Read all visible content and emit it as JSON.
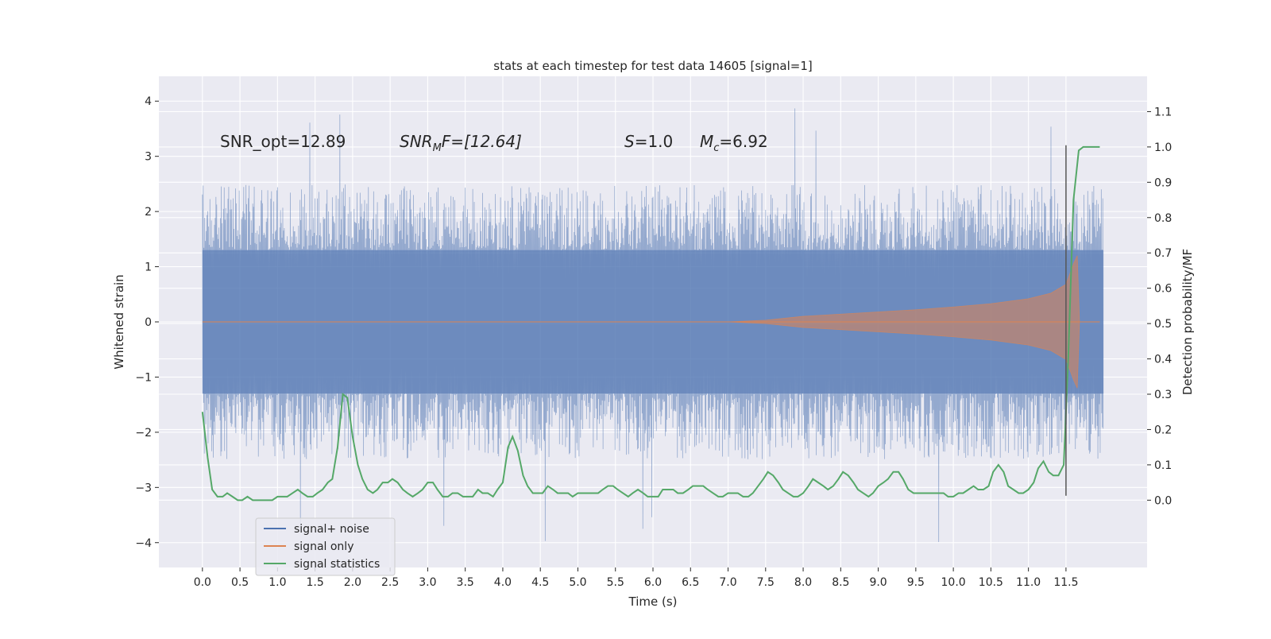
{
  "chart_data": {
    "type": "line",
    "title": "stats at each timestep for test data 14605 [signal=1]",
    "xlabel": "Time (s)",
    "ylabel": "Whitened strain",
    "y2label": "Detection probability/MF",
    "xlim": [
      -0.58,
      12.58
    ],
    "ylim": [
      -4.45,
      4.45
    ],
    "y2lim": [
      -0.1905,
      1.2
    ],
    "xticks": [
      "0.0",
      "0.5",
      "1.0",
      "1.5",
      "2.0",
      "2.5",
      "3.0",
      "3.5",
      "4.0",
      "4.5",
      "5.0",
      "5.5",
      "6.0",
      "6.5",
      "7.0",
      "7.5",
      "8.0",
      "8.5",
      "9.0",
      "9.5",
      "10.0",
      "10.5",
      "11.0",
      "11.5"
    ],
    "yticks": [
      "4",
      "3",
      "2",
      "1",
      "0",
      "−1",
      "−2",
      "−3",
      "−4"
    ],
    "y2ticks": [
      "1.1",
      "1.0",
      "0.9",
      "0.8",
      "0.7",
      "0.6",
      "0.5",
      "0.4",
      "0.3",
      "0.2",
      "0.1",
      "0.0"
    ],
    "grid": true,
    "legend_position": "lower-left",
    "annotations": {
      "snr_opt": "SNR_opt=12.89",
      "snr_mf_sym": "SNR",
      "snr_mf_sub": "M",
      "snr_mf_rest": "F=[12.64]",
      "s_sym": "S",
      "s_rest": "=1.0",
      "mc_sym": "M",
      "mc_sub": "c",
      "mc_rest": "=6.92"
    },
    "marker_line_x": 11.5,
    "series": [
      {
        "name": "signal+ noise",
        "color": "#4c72b0",
        "kind": "noise-band",
        "x_range": [
          0.0,
          12.0
        ],
        "envelope_abs": 1.3,
        "typical_peak": 2.5,
        "max": 4.05,
        "min": -4.05
      },
      {
        "name": "signal only",
        "color": "#dd8452",
        "kind": "chirp-envelope",
        "envelope": [
          [
            7.0,
            0.0
          ],
          [
            7.5,
            0.03
          ],
          [
            8.0,
            0.1
          ],
          [
            8.5,
            0.14
          ],
          [
            9.0,
            0.18
          ],
          [
            9.5,
            0.22
          ],
          [
            10.0,
            0.27
          ],
          [
            10.5,
            0.33
          ],
          [
            11.0,
            0.42
          ],
          [
            11.3,
            0.52
          ],
          [
            11.5,
            0.68
          ],
          [
            11.6,
            1.05
          ],
          [
            11.65,
            1.2
          ],
          [
            11.68,
            0.0
          ],
          [
            11.95,
            0.0
          ]
        ]
      },
      {
        "name": "signal statistics",
        "color": "#55a868",
        "kind": "line-y2",
        "x": [
          0.0,
          0.07,
          0.13,
          0.2,
          0.27,
          0.33,
          0.4,
          0.47,
          0.53,
          0.6,
          0.67,
          0.73,
          0.8,
          0.87,
          0.93,
          1.0,
          1.07,
          1.13,
          1.2,
          1.27,
          1.33,
          1.4,
          1.47,
          1.53,
          1.6,
          1.67,
          1.73,
          1.8,
          1.87,
          1.93,
          2.0,
          2.07,
          2.13,
          2.2,
          2.27,
          2.33,
          2.4,
          2.47,
          2.53,
          2.6,
          2.67,
          2.73,
          2.8,
          2.87,
          2.93,
          3.0,
          3.07,
          3.13,
          3.2,
          3.27,
          3.33,
          3.4,
          3.47,
          3.53,
          3.6,
          3.67,
          3.73,
          3.8,
          3.87,
          3.93,
          4.0,
          4.07,
          4.13,
          4.2,
          4.27,
          4.33,
          4.4,
          4.47,
          4.53,
          4.6,
          4.67,
          4.73,
          4.8,
          4.87,
          4.93,
          5.0,
          5.07,
          5.13,
          5.2,
          5.27,
          5.33,
          5.4,
          5.47,
          5.53,
          5.6,
          5.67,
          5.73,
          5.8,
          5.87,
          5.93,
          6.0,
          6.07,
          6.13,
          6.2,
          6.27,
          6.33,
          6.4,
          6.47,
          6.53,
          6.6,
          6.67,
          6.73,
          6.8,
          6.87,
          6.93,
          7.0,
          7.07,
          7.13,
          7.2,
          7.27,
          7.33,
          7.4,
          7.47,
          7.53,
          7.6,
          7.67,
          7.73,
          7.8,
          7.87,
          7.93,
          8.0,
          8.07,
          8.13,
          8.2,
          8.27,
          8.33,
          8.4,
          8.47,
          8.53,
          8.6,
          8.67,
          8.73,
          8.8,
          8.87,
          8.93,
          9.0,
          9.07,
          9.13,
          9.2,
          9.27,
          9.33,
          9.4,
          9.47,
          9.53,
          9.6,
          9.67,
          9.73,
          9.8,
          9.87,
          9.93,
          10.0,
          10.07,
          10.13,
          10.2,
          10.27,
          10.33,
          10.4,
          10.47,
          10.53,
          10.6,
          10.67,
          10.73,
          10.8,
          10.87,
          10.93,
          11.0,
          11.07,
          11.13,
          11.2,
          11.27,
          11.33,
          11.4,
          11.47,
          11.53,
          11.6,
          11.67,
          11.73,
          11.8,
          11.87,
          11.95
        ],
        "y": [
          0.25,
          0.12,
          0.03,
          0.01,
          0.01,
          0.02,
          0.01,
          0.0,
          0.0,
          0.01,
          0.0,
          0.0,
          0.0,
          0.0,
          0.0,
          0.01,
          0.01,
          0.01,
          0.02,
          0.03,
          0.02,
          0.01,
          0.01,
          0.02,
          0.03,
          0.05,
          0.06,
          0.15,
          0.3,
          0.29,
          0.18,
          0.1,
          0.06,
          0.03,
          0.02,
          0.03,
          0.05,
          0.05,
          0.06,
          0.05,
          0.03,
          0.02,
          0.01,
          0.02,
          0.03,
          0.05,
          0.05,
          0.03,
          0.01,
          0.01,
          0.02,
          0.02,
          0.01,
          0.01,
          0.01,
          0.03,
          0.02,
          0.02,
          0.01,
          0.03,
          0.05,
          0.15,
          0.18,
          0.14,
          0.07,
          0.04,
          0.02,
          0.02,
          0.02,
          0.04,
          0.03,
          0.02,
          0.02,
          0.02,
          0.01,
          0.02,
          0.02,
          0.02,
          0.02,
          0.02,
          0.03,
          0.04,
          0.04,
          0.03,
          0.02,
          0.01,
          0.02,
          0.03,
          0.02,
          0.01,
          0.01,
          0.01,
          0.03,
          0.03,
          0.03,
          0.02,
          0.02,
          0.03,
          0.04,
          0.04,
          0.04,
          0.03,
          0.02,
          0.01,
          0.01,
          0.02,
          0.02,
          0.02,
          0.01,
          0.01,
          0.02,
          0.04,
          0.06,
          0.08,
          0.07,
          0.05,
          0.03,
          0.02,
          0.01,
          0.01,
          0.02,
          0.04,
          0.06,
          0.05,
          0.04,
          0.03,
          0.04,
          0.06,
          0.08,
          0.07,
          0.05,
          0.03,
          0.02,
          0.01,
          0.02,
          0.04,
          0.05,
          0.06,
          0.08,
          0.08,
          0.06,
          0.03,
          0.02,
          0.02,
          0.02,
          0.02,
          0.02,
          0.02,
          0.02,
          0.01,
          0.01,
          0.02,
          0.02,
          0.03,
          0.04,
          0.03,
          0.03,
          0.04,
          0.08,
          0.1,
          0.08,
          0.04,
          0.03,
          0.02,
          0.02,
          0.03,
          0.05,
          0.09,
          0.11,
          0.08,
          0.07,
          0.07,
          0.1,
          0.4,
          0.85,
          0.99,
          1.0,
          1.0,
          1.0,
          1.0
        ]
      }
    ]
  }
}
